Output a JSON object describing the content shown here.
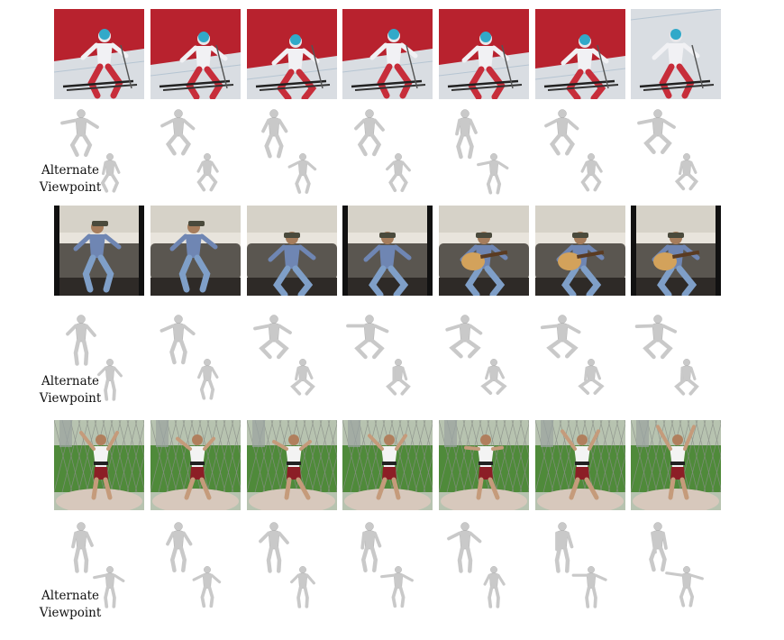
{
  "labels": {
    "row1_line1": "Alternate",
    "row1_line2": "Viewpoint",
    "row2_line1": "Alternate",
    "row2_line2": "Viewpoint",
    "row3_line1": "Alternate",
    "row3_line2": "Viewpoint"
  },
  "colors": {
    "ski_background": "#b8222e",
    "snow": "#d9dde2",
    "room_wall": "#e8e4dc",
    "sofa": "#5a5650",
    "jeans": "#7f9fc8",
    "grass": "#4f8a3a",
    "fence": "#8a8f88",
    "throw_circle": "#d7c8bc",
    "shirt": "#f3f3f3",
    "shorts": "#8c1e26",
    "mesh": "#c9c9c9"
  },
  "sequences": [
    {
      "scene": "alpine-skier",
      "frames": 7
    },
    {
      "scene": "guitar-player",
      "frames": 7
    },
    {
      "scene": "hammer-thrower",
      "frames": 7
    }
  ]
}
